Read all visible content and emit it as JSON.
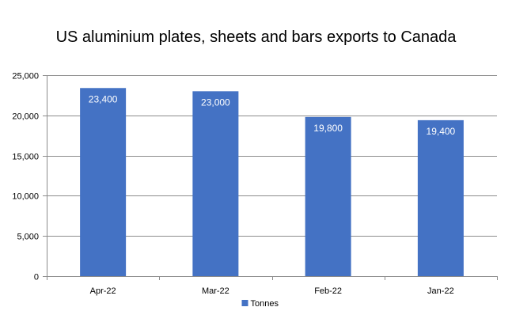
{
  "chart_data": {
    "type": "bar",
    "title": "US aluminium plates, sheets and bars exports to Canada",
    "categories": [
      "Apr-22",
      "Mar-22",
      "Feb-22",
      "Jan-22"
    ],
    "series": [
      {
        "name": "Tonnes",
        "values": [
          23400,
          23000,
          19800,
          19400
        ],
        "color": "#4472C4"
      }
    ],
    "data_labels": [
      "23,400",
      "23,000",
      "19,800",
      "19,400"
    ],
    "y_ticks": [
      0,
      5000,
      10000,
      15000,
      20000,
      25000
    ],
    "y_tick_labels": [
      "0",
      "5,000",
      "10,000",
      "15,000",
      "20,000",
      "25,000"
    ],
    "ylim": [
      0,
      25000
    ],
    "xlabel": "",
    "ylabel": "",
    "grid": true,
    "legend_position": "bottom"
  }
}
